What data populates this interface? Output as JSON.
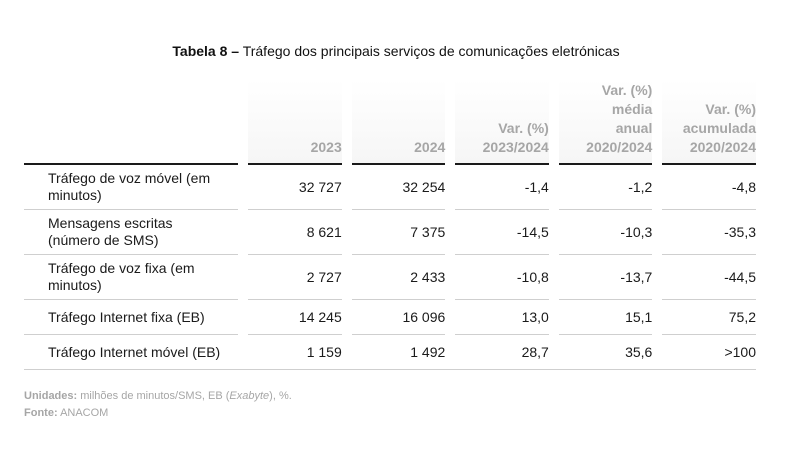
{
  "title": {
    "prefix": "Tabela 8 –",
    "text": "Tráfego dos principais serviços de comunicações eletrónicas"
  },
  "table": {
    "headers": [
      [
        "2023"
      ],
      [
        "2024"
      ],
      [
        "Var. (%)",
        "2023/2024"
      ],
      [
        "Var. (%)",
        "média",
        "anual",
        "2020/2024"
      ],
      [
        "Var. (%)",
        "acumulada",
        "2020/2024"
      ]
    ],
    "rows": [
      {
        "label": [
          "Tráfego de voz móvel (em",
          "minutos)"
        ],
        "values": [
          "32 727",
          "32 254",
          "-1,4",
          "-1,2",
          "-4,8"
        ]
      },
      {
        "label": [
          "Mensagens escritas",
          "(número de SMS)"
        ],
        "values": [
          "8 621",
          "7 375",
          "-14,5",
          "-10,3",
          "-35,3"
        ]
      },
      {
        "label": [
          "Tráfego de voz fixa (em",
          "minutos)"
        ],
        "values": [
          "2 727",
          "2 433",
          "-10,8",
          "-13,7",
          "-44,5"
        ]
      },
      {
        "label": [
          "Tráfego Internet fixa (EB)"
        ],
        "values": [
          "14 245",
          "16 096",
          "13,0",
          "15,1",
          "75,2"
        ]
      },
      {
        "label": [
          "Tráfego Internet móvel (EB)"
        ],
        "values": [
          "1 159",
          "1 492",
          "28,7",
          "35,6",
          ">100"
        ]
      }
    ]
  },
  "notes": {
    "units_label": "Unidades:",
    "units_text_before": "milhões de minutos/SMS, EB (",
    "units_italic": "Exabyte",
    "units_text_after": "), %.",
    "source_label": "Fonte:",
    "source_text": "ANACOM"
  }
}
